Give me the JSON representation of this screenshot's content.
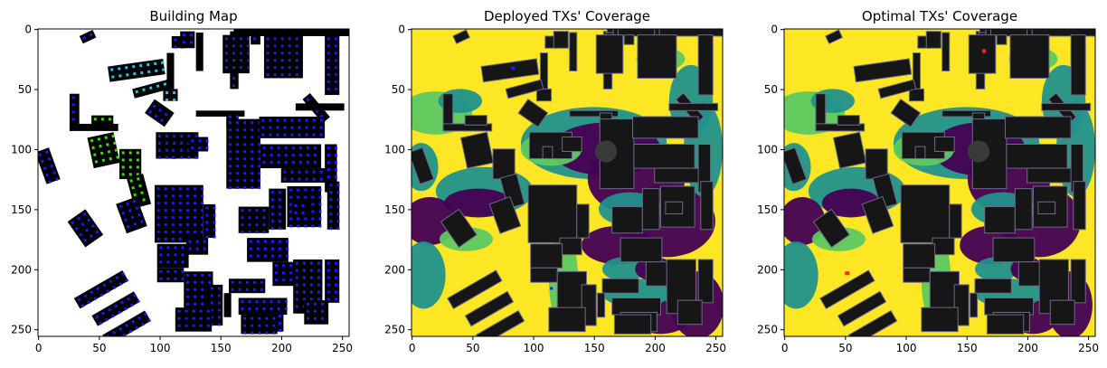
{
  "chart_data": [
    {
      "type": "heatmap",
      "title": "Building Map",
      "xlim": [
        0,
        255
      ],
      "ylim": [
        255,
        0
      ],
      "xticks": [
        0,
        50,
        100,
        150,
        200,
        250
      ],
      "yticks": [
        0,
        50,
        100,
        150,
        200,
        250
      ],
      "colors": {
        "background": "#ffffff",
        "building": "#000000",
        "tx_dot": "#1a1aff",
        "tx_dot_alt": "#22c4f0",
        "tx_dot_green": "#33e000"
      }
    },
    {
      "type": "heatmap",
      "title": "Deployed TXs' Coverage",
      "xlim": [
        0,
        255
      ],
      "ylim": [
        255,
        0
      ],
      "xticks": [
        0,
        50,
        100,
        150,
        200,
        250
      ],
      "yticks": [
        0,
        50,
        100,
        150,
        200,
        250
      ],
      "colors": {
        "high": "#fde725",
        "mid_high": "#5ec962",
        "mid": "#21918c",
        "low": "#440154",
        "building": "#161616",
        "tx_marker": "#1a1aff"
      }
    },
    {
      "type": "heatmap",
      "title": "Optimal TXs' Coverage",
      "xlim": [
        0,
        255
      ],
      "ylim": [
        255,
        0
      ],
      "xticks": [
        0,
        50,
        100,
        150,
        200,
        250
      ],
      "yticks": [
        0,
        50,
        100,
        150,
        200,
        250
      ],
      "colors": {
        "high": "#fde725",
        "mid_high": "#5ec962",
        "mid": "#21918c",
        "low": "#440154",
        "building": "#161616",
        "tx_marker": "#ff2020"
      }
    }
  ]
}
